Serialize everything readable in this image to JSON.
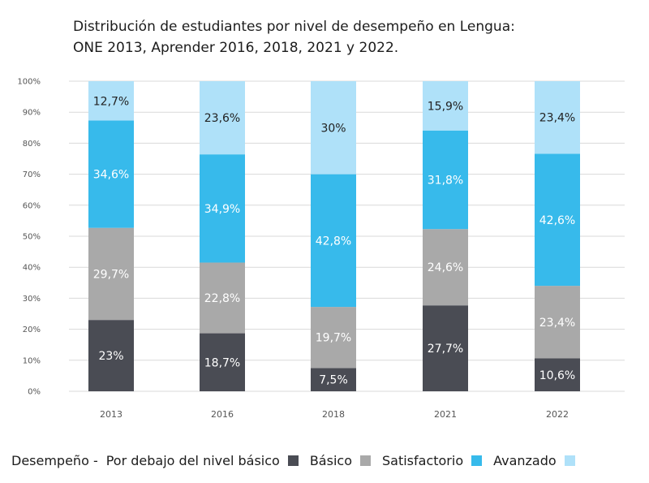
{
  "title": {
    "line1": "Distribución de estudiantes por nivel de desempeño en Lengua:",
    "line2": "ONE 2013, Aprender 2016, 2018, 2021 y 2022."
  },
  "legend": {
    "title": "Desempeño -",
    "items": [
      {
        "label": "Por debajo del nivel básico",
        "color": "#4a4c54"
      },
      {
        "label": "Básico",
        "color": "#a9a9a9"
      },
      {
        "label": "Satisfactorio",
        "color": "#37baeb"
      },
      {
        "label": "Avanzado",
        "color": "#afe1f9"
      }
    ]
  },
  "chart_data": {
    "type": "bar",
    "stacked": true,
    "categories": [
      "2013",
      "2016",
      "2018",
      "2021",
      "2022"
    ],
    "ylim": [
      0,
      100
    ],
    "yticks": [
      "0%",
      "10%",
      "20%",
      "30%",
      "40%",
      "50%",
      "60%",
      "70%",
      "80%",
      "90%",
      "100%"
    ],
    "grid": true,
    "series": [
      {
        "name": "Por debajo del nivel básico",
        "color": "#4a4c54",
        "label_color": "#ffffff",
        "values": [
          23,
          18.7,
          7.5,
          27.7,
          10.6
        ],
        "labels": [
          "23%",
          "18,7%",
          "7,5%",
          "27,7%",
          "10,6%"
        ]
      },
      {
        "name": "Básico",
        "color": "#a9a9a9",
        "label_color": "#ffffff",
        "values": [
          29.7,
          22.8,
          19.7,
          24.6,
          23.4
        ],
        "labels": [
          "29,7%",
          "22,8%",
          "19,7%",
          "24,6%",
          "23,4%"
        ]
      },
      {
        "name": "Satisfactorio",
        "color": "#37baeb",
        "label_color": "#ffffff",
        "values": [
          34.6,
          34.9,
          42.8,
          31.8,
          42.6
        ],
        "labels": [
          "34,6%",
          "34,9%",
          "42,8%",
          "31,8%",
          "42,6%"
        ]
      },
      {
        "name": "Avanzado",
        "color": "#afe1f9",
        "label_color": "#222222",
        "values": [
          12.7,
          23.6,
          30,
          15.9,
          23.4
        ],
        "labels": [
          "12,7%",
          "23,6%",
          "30%",
          "15,9%",
          "23,4%"
        ]
      }
    ]
  }
}
